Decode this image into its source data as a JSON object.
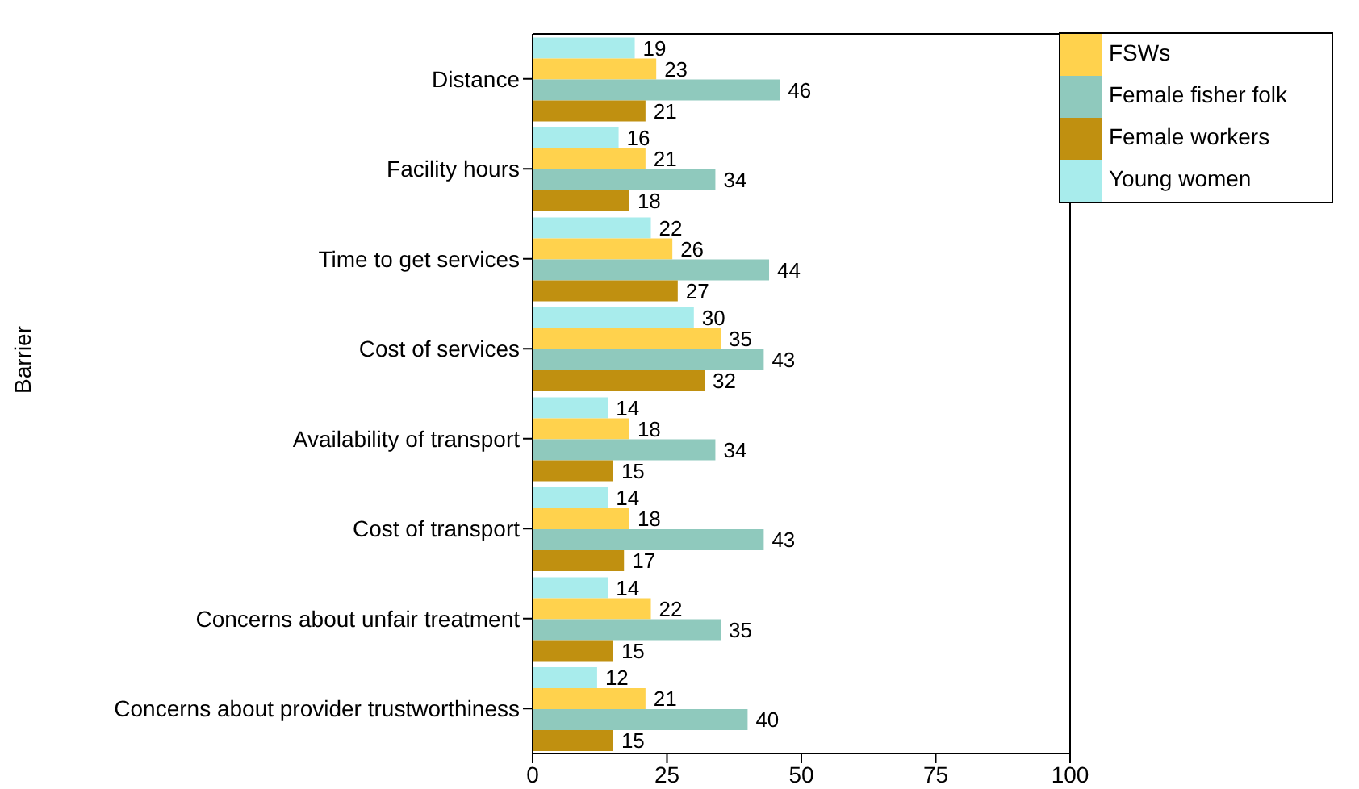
{
  "chart_data": {
    "type": "bar",
    "orientation": "horizontal",
    "ylabel": "Barrier",
    "categories": [
      "Distance",
      "Facility hours",
      "Time to get services",
      "Cost of services",
      "Availability of transport",
      "Cost of transport",
      "Concerns about unfair treatment",
      "Concerns about provider trustworthiness"
    ],
    "series": [
      {
        "name": "Young women",
        "color": "#a8ecec",
        "values": [
          19,
          16,
          22,
          30,
          14,
          14,
          14,
          12
        ]
      },
      {
        "name": "FSWs",
        "color": "#ffd24d",
        "values": [
          23,
          21,
          26,
          35,
          18,
          18,
          22,
          21
        ]
      },
      {
        "name": "Female fisher folk",
        "color": "#8fc9bd",
        "values": [
          46,
          34,
          44,
          43,
          34,
          43,
          35,
          40
        ]
      },
      {
        "name": "Female workers",
        "color": "#c09010",
        "values": [
          21,
          18,
          27,
          32,
          15,
          17,
          15,
          15
        ]
      }
    ],
    "xlim": [
      0,
      100
    ],
    "xticks": [
      0,
      25,
      50,
      75,
      100
    ],
    "data_labels": true,
    "legend": "top right",
    "grid": false
  }
}
